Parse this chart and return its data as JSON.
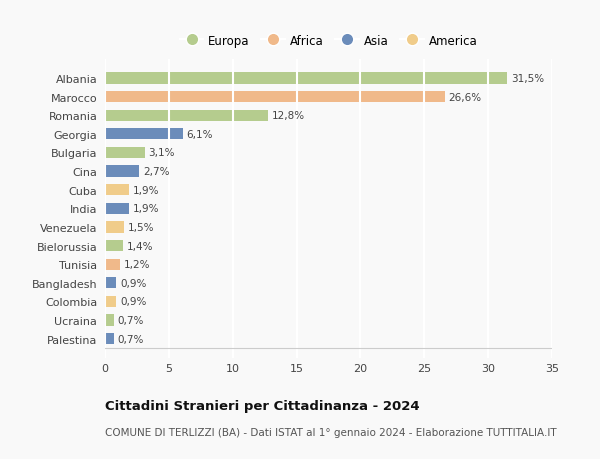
{
  "countries": [
    "Albania",
    "Marocco",
    "Romania",
    "Georgia",
    "Bulgaria",
    "Cina",
    "Cuba",
    "India",
    "Venezuela",
    "Bielorussia",
    "Tunisia",
    "Bangladesh",
    "Colombia",
    "Ucraina",
    "Palestina"
  ],
  "values": [
    31.5,
    26.6,
    12.8,
    6.1,
    3.1,
    2.7,
    1.9,
    1.9,
    1.5,
    1.4,
    1.2,
    0.9,
    0.9,
    0.7,
    0.7
  ],
  "labels": [
    "31,5%",
    "26,6%",
    "12,8%",
    "6,1%",
    "3,1%",
    "2,7%",
    "1,9%",
    "1,9%",
    "1,5%",
    "1,4%",
    "1,2%",
    "0,9%",
    "0,9%",
    "0,7%",
    "0,7%"
  ],
  "continents": [
    "Europa",
    "Africa",
    "Europa",
    "Asia",
    "Europa",
    "Asia",
    "America",
    "Asia",
    "America",
    "Europa",
    "Africa",
    "Asia",
    "America",
    "Europa",
    "Asia"
  ],
  "continent_colors": {
    "Europa": "#b5cc8e",
    "Africa": "#f0b98a",
    "Asia": "#6b8cba",
    "America": "#f0cc8a"
  },
  "legend_order": [
    "Europa",
    "Africa",
    "Asia",
    "America"
  ],
  "xlim": [
    0,
    35
  ],
  "xticks": [
    0,
    5,
    10,
    15,
    20,
    25,
    30,
    35
  ],
  "title": "Cittadini Stranieri per Cittadinanza - 2024",
  "subtitle": "COMUNE DI TERLIZZI (BA) - Dati ISTAT al 1° gennaio 2024 - Elaborazione TUTTITALIA.IT",
  "bg_color": "#f9f9f9",
  "grid_color": "#ffffff",
  "bar_height": 0.6,
  "label_fontsize": 7.5,
  "ytick_fontsize": 8.0,
  "xtick_fontsize": 8.0,
  "legend_fontsize": 8.5,
  "title_fontsize": 9.5,
  "subtitle_fontsize": 7.5
}
